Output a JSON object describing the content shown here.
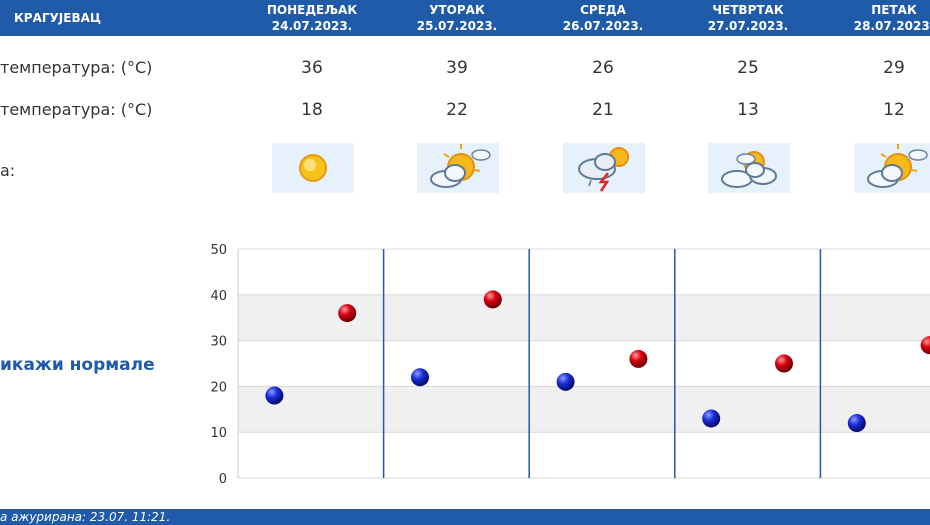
{
  "header": {
    "city": "КРАГУЈЕВАЦ"
  },
  "days": [
    {
      "name": "ПОНЕДЕЉАК",
      "date": "24.07.2023.",
      "max": "36",
      "min": "18",
      "icon": "sunny-icon"
    },
    {
      "name": "УТОРАК",
      "date": "25.07.2023.",
      "max": "39",
      "min": "22",
      "icon": "partly-cloudy-icon"
    },
    {
      "name": "СРЕДА",
      "date": "26.07.2023.",
      "max": "26",
      "min": "21",
      "icon": "thunderstorm-icon"
    },
    {
      "name": "ЧЕТВРТАК",
      "date": "27.07.2023.",
      "max": "25",
      "min": "13",
      "icon": "mostly-cloudy-icon"
    },
    {
      "name": "ПЕТАК",
      "date": "28.07.2023.",
      "max": "29",
      "min": "12",
      "icon": "partly-cloudy-icon"
    }
  ],
  "rows": {
    "max_label": "температура: (°C)",
    "min_label": "температура: (°C)",
    "weather_label": "а:"
  },
  "show_normals": "икажи нормале",
  "footer": {
    "updated": "а ажурирана:  23.07.  11:21."
  },
  "chart_data": {
    "type": "scatter",
    "categories": [
      "24.07.2023.",
      "25.07.2023.",
      "26.07.2023.",
      "27.07.2023.",
      "28.07.2023."
    ],
    "series": [
      {
        "values": [
          18,
          22,
          21,
          13,
          12
        ],
        "color": "#0a1aa8"
      },
      {
        "values": [
          36,
          39,
          26,
          25,
          29
        ],
        "color": "#c8000e"
      }
    ],
    "yticks": [
      "0",
      "10",
      "20",
      "30",
      "40",
      "50"
    ],
    "ylim": [
      0,
      50
    ],
    "grid": true
  },
  "colors": {
    "accent": "#1f5ba8",
    "band": "#f0f0f0"
  }
}
